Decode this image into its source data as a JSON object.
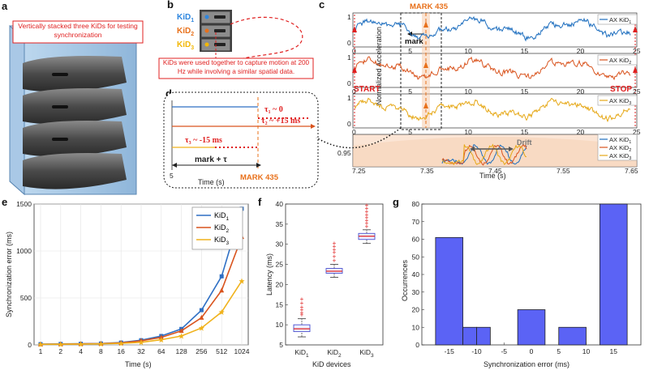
{
  "panels": {
    "a": "a",
    "b": "b",
    "c": "c",
    "d": "d",
    "e": "e",
    "f": "f",
    "g": "g"
  },
  "panel_a": {
    "note": "Vertically stacked three KiDs for testing synchronization"
  },
  "panel_b": {
    "kids": [
      "KiD",
      "KiD",
      "KiD"
    ],
    "subs": [
      "1",
      "2",
      "3"
    ],
    "colors": [
      "#2e86de",
      "#e8701a",
      "#f2b705"
    ],
    "note": "KiDs were used together to capture motion at 200 Hz while involving a similar spatial data."
  },
  "panel_c": {
    "ylabel": "Normalized Acceleration",
    "xlabel": "Time (s)",
    "mark": "MARK 435",
    "mark_arrow": "mark",
    "start": "START",
    "stop": "STOP",
    "drift": "Drift",
    "legend": [
      "AX KiD",
      "AX KiD",
      "AX KiD"
    ],
    "legend_subs": [
      "1",
      "2",
      "3"
    ],
    "top_ticks_x": [
      "0",
      "5",
      "10",
      "15",
      "20",
      "25"
    ],
    "top_ticks_y": [
      "0",
      "1"
    ],
    "bottom_ticks_x": [
      "7.25",
      "7.35",
      "7.45",
      "7.55",
      "7.65"
    ],
    "bottom_tick_y": "0.95",
    "series_colors": [
      "#1f6fbf",
      "#d9541e",
      "#e6a817"
    ]
  },
  "panel_d": {
    "tau1": "τ₁ ~ 0",
    "tau2": "τ₂ ~ +15 ms",
    "tau3": "τ₃ ~ -15 ms",
    "mark_tau": "mark + τ",
    "start_tick": "5",
    "mark": "MARK 435",
    "xlabel": "Time (s)"
  },
  "chart_data": [
    {
      "type": "line",
      "title": "",
      "xlabel": "Time (s)",
      "ylabel": "Synchronization error (ms)",
      "categories": [
        "1",
        "2",
        "4",
        "8",
        "16",
        "32",
        "64",
        "128",
        "256",
        "512",
        "1024"
      ],
      "ylim": [
        0,
        1500
      ],
      "yticks": [
        "0",
        "500",
        "1000",
        "1500"
      ],
      "series": [
        {
          "name": "KiD1",
          "label": "KiD",
          "sub": "1",
          "color": "#2e6fc4",
          "values": [
            8,
            10,
            12,
            15,
            25,
            50,
            95,
            170,
            370,
            730,
            1450
          ]
        },
        {
          "name": "KiD2",
          "label": "KiD",
          "sub": "2",
          "color": "#d9541e",
          "values": [
            7,
            9,
            11,
            14,
            22,
            44,
            80,
            150,
            290,
            580,
            1150
          ]
        },
        {
          "name": "KiD3",
          "label": "KiD",
          "sub": "3",
          "color": "#f0b21c",
          "values": [
            6,
            7,
            9,
            11,
            16,
            28,
            55,
            95,
            180,
            350,
            680
          ]
        }
      ]
    },
    {
      "type": "box",
      "xlabel": "KiD devices",
      "ylabel": "Latency (ms)",
      "categories": [
        "KiD1",
        "KiD2",
        "KiD3"
      ],
      "category_labels": [
        "KiD",
        "KiD",
        "KiD"
      ],
      "category_subs": [
        "1",
        "2",
        "3"
      ],
      "ylim": [
        5,
        40
      ],
      "yticks": [
        "5",
        "10",
        "15",
        "20",
        "25",
        "30",
        "35",
        "40"
      ],
      "boxes": [
        {
          "whisker_low": 7,
          "q1": 8.3,
          "median": 9,
          "q3": 10,
          "whisker_high": 11.5,
          "outliers": [
            12.5,
            13,
            13.8,
            14.5,
            15.5,
            16.5
          ]
        },
        {
          "whisker_low": 21.8,
          "q1": 22.8,
          "median": 23.3,
          "q3": 24,
          "whisker_high": 25,
          "outliers": [
            26,
            27,
            28,
            28.7,
            29.5,
            30.3
          ]
        },
        {
          "whisker_low": 30.2,
          "q1": 31.2,
          "median": 32,
          "q3": 32.7,
          "whisker_high": 33.6,
          "outliers": [
            34.5,
            35.3,
            36,
            36.7,
            37.4,
            38.2,
            39,
            39.8
          ]
        }
      ]
    },
    {
      "type": "bar",
      "xlabel": "Synchronization error (ms)",
      "ylabel": "Occurrences",
      "categories": [
        "-15",
        "-12.5",
        "-10",
        "0",
        "7.5",
        "15"
      ],
      "bins": [
        [
          -17.5,
          -12.5
        ],
        [
          -12.5,
          -10
        ],
        [
          -10,
          -7.5
        ],
        [
          -2.5,
          2.5
        ],
        [
          5,
          10
        ],
        [
          12.5,
          17.5
        ]
      ],
      "values": [
        61,
        10,
        10,
        20,
        10,
        81
      ],
      "xlim": [
        -20,
        20
      ],
      "ylim": [
        0,
        80
      ],
      "xticks": [
        "-15",
        "-10",
        "-5",
        "0",
        "5",
        "10",
        "15"
      ],
      "yticks": [
        "0",
        "10",
        "20",
        "30",
        "40",
        "50",
        "60",
        "70",
        "80"
      ],
      "color": "#5b63f5"
    }
  ]
}
